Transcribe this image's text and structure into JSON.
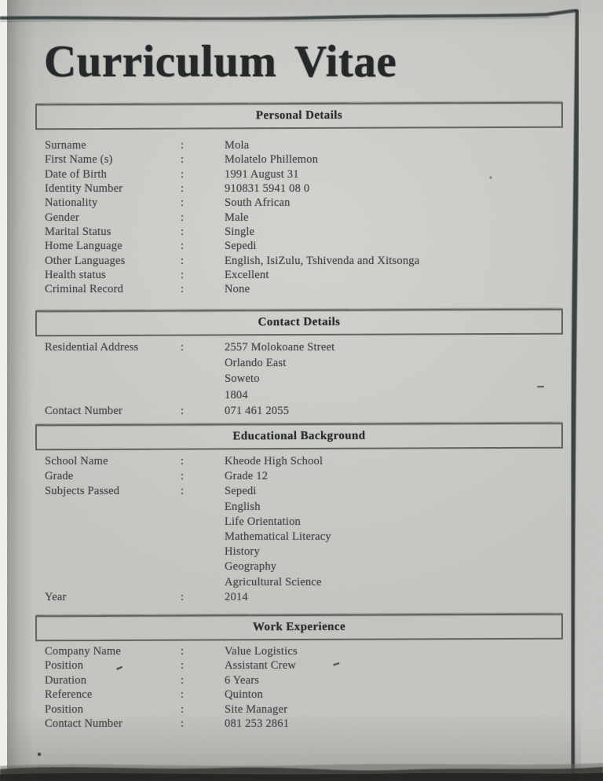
{
  "document": {
    "title": "Curriculum Vitae",
    "sections": [
      {
        "header": "Personal Details",
        "rows": [
          {
            "label": "Surname",
            "colon": ":",
            "value": "Mola"
          },
          {
            "label": "First Name (s)",
            "colon": ":",
            "value": "Molatelo Phillemon"
          },
          {
            "label": "Date of Birth",
            "colon": ":",
            "value": "1991 August 31"
          },
          {
            "label": "Identity Number",
            "colon": ":",
            "value": "910831 5941 08 0"
          },
          {
            "label": "Nationality",
            "colon": ":",
            "value": "South African"
          },
          {
            "label": "Gender",
            "colon": ":",
            "value": "Male"
          },
          {
            "label": "Marital Status",
            "colon": ":",
            "value": "Single"
          },
          {
            "label": "Home Language",
            "colon": ":",
            "value": "Sepedi"
          },
          {
            "label": "Other Languages",
            "colon": ":",
            "value": "English, IsiZulu, Tshivenda and Xitsonga"
          },
          {
            "label": "Health status",
            "colon": ":",
            "value": "Excellent"
          },
          {
            "label": "Criminal Record",
            "colon": ":",
            "value": "None"
          }
        ]
      },
      {
        "header": "Contact Details",
        "rows": [
          {
            "label": "Residential Address",
            "colon": ":",
            "value": "2557 Molokoane Street"
          },
          {
            "label": "",
            "colon": "",
            "value": "Orlando East"
          },
          {
            "label": "",
            "colon": "",
            "value": "Soweto"
          },
          {
            "label": "",
            "colon": "",
            "value": "1804"
          },
          {
            "label": "Contact Number",
            "colon": ":",
            "value": "071 461 2055"
          }
        ]
      },
      {
        "header": "Educational Background",
        "rows": [
          {
            "label": "School Name",
            "colon": ":",
            "value": "Kheode High School"
          },
          {
            "label": "Grade",
            "colon": ":",
            "value": "Grade 12"
          },
          {
            "label": "Subjects Passed",
            "colon": ":",
            "value": "Sepedi"
          },
          {
            "label": "",
            "colon": "",
            "value": "English"
          },
          {
            "label": "",
            "colon": "",
            "value": "Life Orientation"
          },
          {
            "label": "",
            "colon": "",
            "value": "Mathematical Literacy"
          },
          {
            "label": "",
            "colon": "",
            "value": "History"
          },
          {
            "label": "",
            "colon": "",
            "value": "Geography"
          },
          {
            "label": "",
            "colon": "",
            "value": "Agricultural Science"
          },
          {
            "label": "Year",
            "colon": ":",
            "value": "2014"
          }
        ]
      },
      {
        "header": "Work Experience",
        "rows": [
          {
            "label": "Company Name",
            "colon": ":",
            "value": "Value Logistics"
          },
          {
            "label": "Position",
            "colon": ":",
            "value": "Assistant Crew"
          },
          {
            "label": "Duration",
            "colon": ":",
            "value": "6 Years"
          },
          {
            "label": "Reference",
            "colon": ":",
            "value": "Quinton"
          },
          {
            "label": "Position",
            "colon": ":",
            "value": "Site Manager"
          },
          {
            "label": "Contact Number",
            "colon": ":",
            "value": "081 253 2861"
          }
        ]
      }
    ]
  },
  "theme": {
    "paper": "#c8c9c5",
    "ink": "#474b4e",
    "heading_ink": "#26292b",
    "edge_line": "#2b3330",
    "margin_strip": "#f3f3f1",
    "bottom_band": "#232321"
  }
}
